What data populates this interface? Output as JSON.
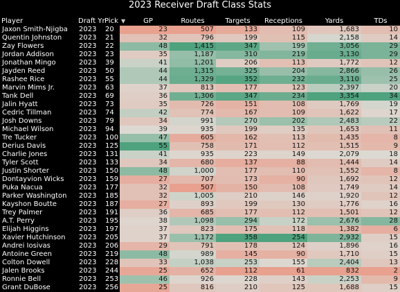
{
  "title": "2023 Receiver Draft Class Stats",
  "header": {
    "player": "Player",
    "draft_yr": "Draft Yr",
    "pick": "Pick",
    "sort_icon": "sort-descending-icon",
    "gp": "GP",
    "routes": "Routes",
    "targets": "Targets",
    "receptions": "Receptions",
    "yards": "Yards",
    "tds": "TDs"
  },
  "colors": {
    "low": "#e8a08f",
    "mid": "#dcd9d2",
    "high": "#4fa27e",
    "background": "#000000"
  },
  "chart_data": {
    "type": "table",
    "title": "2023 Receiver Draft Class Stats",
    "columns": [
      "Player",
      "Draft Yr",
      "Pick",
      "GP",
      "Routes",
      "Targets",
      "Receptions",
      "Yards",
      "TDs"
    ],
    "color_scale": "red-grey-green per column (low to high)",
    "rows": [
      {
        "player": "Jaxon Smith-Njigba",
        "draft_yr": "2023",
        "pick": "20",
        "gp": 23,
        "routes": 507,
        "targets": 133,
        "receptions": 109,
        "yards": 1683,
        "tds": 10
      },
      {
        "player": "Quentin Johnston",
        "draft_yr": "2023",
        "pick": "21",
        "gp": 32,
        "routes": 796,
        "targets": 199,
        "receptions": 115,
        "yards": 2158,
        "tds": 14
      },
      {
        "player": "Zay Flowers",
        "draft_yr": "2023",
        "pick": "22",
        "gp": 48,
        "routes": 1415,
        "targets": 347,
        "receptions": 199,
        "yards": 3056,
        "tds": 29
      },
      {
        "player": "Jordan Addison",
        "draft_yr": "2023",
        "pick": "23",
        "gp": 35,
        "routes": 1187,
        "targets": 310,
        "receptions": 219,
        "yards": 3130,
        "tds": 29
      },
      {
        "player": "Jonathan Mingo",
        "draft_yr": "2023",
        "pick": "39",
        "gp": 41,
        "routes": 1201,
        "targets": 206,
        "receptions": 113,
        "yards": 1772,
        "tds": 12
      },
      {
        "player": "Jayden Reed",
        "draft_yr": "2023",
        "pick": "50",
        "gp": 44,
        "routes": 1315,
        "targets": 325,
        "receptions": 204,
        "yards": 2866,
        "tds": 26
      },
      {
        "player": "Rashee Rice",
        "draft_yr": "2023",
        "pick": "55",
        "gp": 44,
        "routes": 1329,
        "targets": 352,
        "receptions": 232,
        "yards": 3110,
        "tds": 25
      },
      {
        "player": "Marvin Mims Jr.",
        "draft_yr": "2023",
        "pick": "63",
        "gp": 37,
        "routes": 813,
        "targets": 177,
        "receptions": 123,
        "yards": 2397,
        "tds": 20
      },
      {
        "player": "Tank Dell",
        "draft_yr": "2023",
        "pick": "69",
        "gp": 36,
        "routes": 1306,
        "targets": 347,
        "receptions": 234,
        "yards": 3354,
        "tds": 34
      },
      {
        "player": "Jalin Hyatt",
        "draft_yr": "2023",
        "pick": "73",
        "gp": 35,
        "routes": 726,
        "targets": 151,
        "receptions": 108,
        "yards": 1769,
        "tds": 19
      },
      {
        "player": "Cedric Tillman",
        "draft_yr": "2023",
        "pick": "74",
        "gp": 42,
        "routes": 774,
        "targets": 167,
        "receptions": 109,
        "yards": 1622,
        "tds": 17
      },
      {
        "player": "Josh Downs",
        "draft_yr": "2023",
        "pick": "79",
        "gp": 34,
        "routes": 991,
        "targets": 270,
        "receptions": 202,
        "yards": 2483,
        "tds": 22
      },
      {
        "player": "Michael Wilson",
        "draft_yr": "2023",
        "pick": "94",
        "gp": 39,
        "routes": 935,
        "targets": 199,
        "receptions": 135,
        "yards": 1653,
        "tds": 11
      },
      {
        "player": "Tre Tucker",
        "draft_yr": "2023",
        "pick": "100",
        "gp": 47,
        "routes": 605,
        "targets": 162,
        "receptions": 113,
        "yards": 1435,
        "tds": 8
      },
      {
        "player": "Derius Davis",
        "draft_yr": "2023",
        "pick": "125",
        "gp": 55,
        "routes": 758,
        "targets": 171,
        "receptions": 112,
        "yards": 1515,
        "tds": 9
      },
      {
        "player": "Charlie Jones",
        "draft_yr": "2023",
        "pick": "131",
        "gp": 41,
        "routes": 935,
        "targets": 223,
        "receptions": 149,
        "yards": 2079,
        "tds": 18
      },
      {
        "player": "Tyler Scott",
        "draft_yr": "2023",
        "pick": "133",
        "gp": 34,
        "routes": 680,
        "targets": 137,
        "receptions": 88,
        "yards": 1444,
        "tds": 14
      },
      {
        "player": "Justin Shorter",
        "draft_yr": "2023",
        "pick": "150",
        "gp": 48,
        "routes": 1000,
        "targets": 177,
        "receptions": 110,
        "yards": 1552,
        "tds": 8
      },
      {
        "player": "Dontayvion Wicks",
        "draft_yr": "2023",
        "pick": "159",
        "gp": 27,
        "routes": 707,
        "targets": 173,
        "receptions": 90,
        "yards": 1692,
        "tds": 12
      },
      {
        "player": "Puka Nacua",
        "draft_yr": "2023",
        "pick": "177",
        "gp": 32,
        "routes": 507,
        "targets": 150,
        "receptions": 108,
        "yards": 1749,
        "tds": 14
      },
      {
        "player": "Parker Washington",
        "draft_yr": "2023",
        "pick": "185",
        "gp": 32,
        "routes": 1005,
        "targets": 210,
        "receptions": 146,
        "yards": 1920,
        "tds": 12
      },
      {
        "player": "Kayshon Boutte",
        "draft_yr": "2023",
        "pick": "187",
        "gp": 27,
        "routes": 893,
        "targets": 199,
        "receptions": 130,
        "yards": 1776,
        "tds": 16
      },
      {
        "player": "Trey Palmer",
        "draft_yr": "2023",
        "pick": "191",
        "gp": 36,
        "routes": 685,
        "targets": 177,
        "receptions": 112,
        "yards": 1501,
        "tds": 12
      },
      {
        "player": "A.T. Perry",
        "draft_yr": "2023",
        "pick": "195",
        "gp": 38,
        "routes": 1098,
        "targets": 294,
        "receptions": 172,
        "yards": 2676,
        "tds": 28
      },
      {
        "player": "Elijah Higgins",
        "draft_yr": "2023",
        "pick": "197",
        "gp": 37,
        "routes": 823,
        "targets": 175,
        "receptions": 118,
        "yards": 1382,
        "tds": 6
      },
      {
        "player": "Xavier Hutchinson",
        "draft_yr": "2023",
        "pick": "205",
        "gp": 37,
        "routes": 1172,
        "targets": 358,
        "receptions": 254,
        "yards": 2932,
        "tds": 15
      },
      {
        "player": "Andrei Iosivas",
        "draft_yr": "2023",
        "pick": "206",
        "gp": 29,
        "routes": 791,
        "targets": 178,
        "receptions": 124,
        "yards": 1896,
        "tds": 16
      },
      {
        "player": "Antoine Green",
        "draft_yr": "2023",
        "pick": "219",
        "gp": 48,
        "routes": 989,
        "targets": 145,
        "receptions": 90,
        "yards": 1710,
        "tds": 15
      },
      {
        "player": "Colton Dowell",
        "draft_yr": "2023",
        "pick": "228",
        "gp": 33,
        "routes": 1038,
        "targets": 253,
        "receptions": 155,
        "yards": 2404,
        "tds": 13
      },
      {
        "player": "Jalen Brooks",
        "draft_yr": "2023",
        "pick": "244",
        "gp": 25,
        "routes": 652,
        "targets": 112,
        "receptions": 61,
        "yards": 832,
        "tds": 2
      },
      {
        "player": "Ronnie Bell",
        "draft_yr": "2023",
        "pick": "253",
        "gp": 46,
        "routes": 926,
        "targets": 228,
        "receptions": 143,
        "yards": 2253,
        "tds": 9
      },
      {
        "player": "Grant DuBose",
        "draft_yr": "2023",
        "pick": "256",
        "gp": 25,
        "routes": 816,
        "targets": 210,
        "receptions": 125,
        "yards": 1688,
        "tds": 15
      }
    ]
  }
}
